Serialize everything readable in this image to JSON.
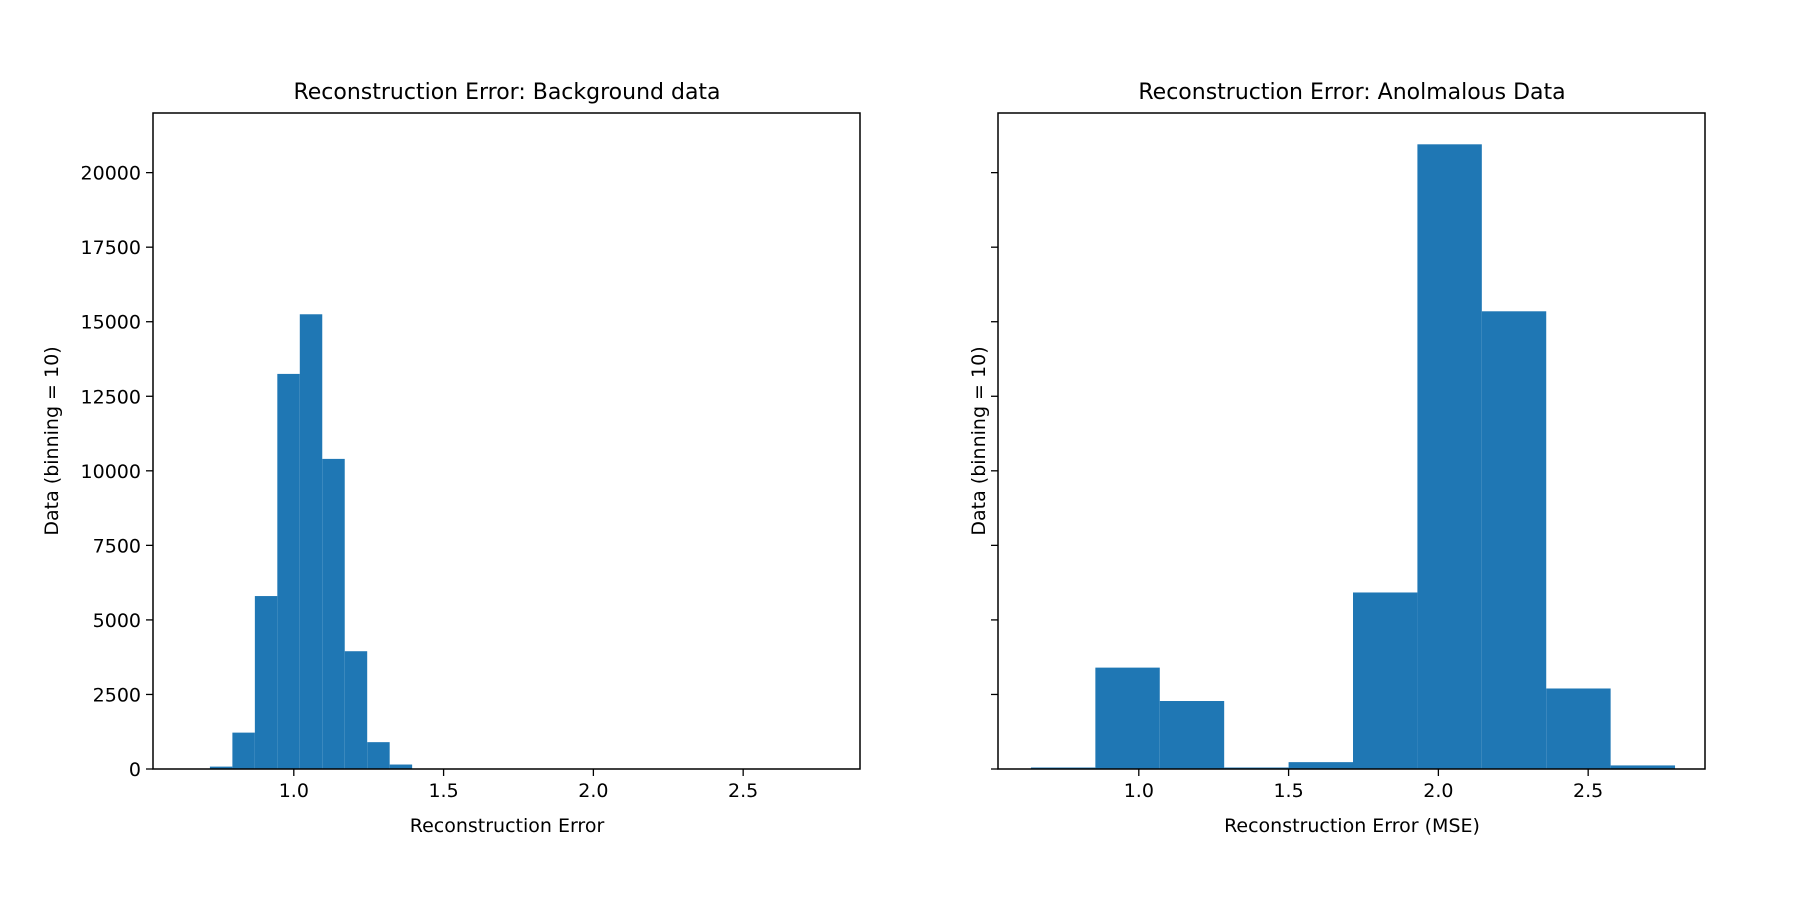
{
  "chart_data": [
    {
      "type": "bar",
      "title": "Reconstruction Error: Background data",
      "xlabel": "Reconstruction Error",
      "ylabel": "Data (binning = 10)",
      "xlim": [
        0.53,
        2.89
      ],
      "ylim": [
        0,
        22000
      ],
      "xticks": [
        1.0,
        1.5,
        2.0,
        2.5
      ],
      "xtick_labels": [
        "1.0",
        "1.5",
        "2.0",
        "2.5"
      ],
      "yticks": [
        0,
        2500,
        5000,
        7500,
        10000,
        12500,
        15000,
        17500,
        20000
      ],
      "ytick_labels": [
        "0",
        "2500",
        "5000",
        "7500",
        "10000",
        "12500",
        "15000",
        "17500",
        "20000"
      ],
      "bin_edges": [
        0.72,
        0.795,
        0.87,
        0.945,
        1.02,
        1.095,
        1.17,
        1.245,
        1.32,
        1.395
      ],
      "values": [
        80,
        1220,
        5800,
        13250,
        15250,
        10400,
        3950,
        900,
        150
      ],
      "color": "#1f77b4",
      "grid": false,
      "legend": "none"
    },
    {
      "type": "bar",
      "title": "Reconstruction Error: Anolmalous Data",
      "xlabel": "Reconstruction Error (MSE)",
      "ylabel": "Data (binning = 10)",
      "xlim": [
        0.53,
        2.89
      ],
      "ylim": [
        0,
        22000
      ],
      "xticks": [
        1.0,
        1.5,
        2.0,
        2.5
      ],
      "xtick_labels": [
        "1.0",
        "1.5",
        "2.0",
        "2.5"
      ],
      "yticks": [
        0,
        2500,
        5000,
        7500,
        10000,
        12500,
        15000,
        17500,
        20000
      ],
      "ytick_labels": [
        "",
        "",
        "",
        "",
        "",
        "",
        "",
        "",
        ""
      ],
      "bin_edges": [
        0.64,
        0.855,
        1.07,
        1.285,
        1.5,
        1.715,
        1.93,
        2.145,
        2.36,
        2.575,
        2.79
      ],
      "values": [
        50,
        3400,
        2280,
        50,
        230,
        5920,
        20950,
        15350,
        2700,
        120
      ],
      "color": "#1f77b4",
      "grid": false,
      "legend": "none"
    }
  ]
}
